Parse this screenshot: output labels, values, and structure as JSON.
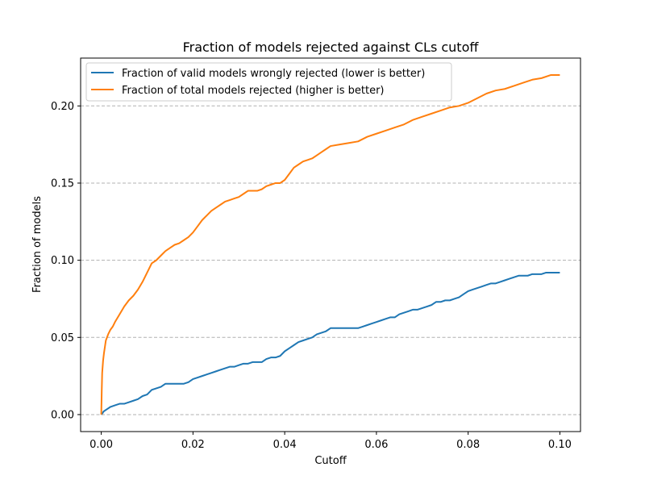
{
  "chart_data": {
    "type": "line",
    "title": "Fraction of models rejected against CLs cutoff",
    "xlabel": "Cutoff",
    "ylabel": "Fraction of models",
    "xlim": [
      -0.0045,
      0.1045
    ],
    "ylim": [
      -0.011,
      0.231
    ],
    "xticks": [
      0.0,
      0.02,
      0.04,
      0.06,
      0.08,
      0.1
    ],
    "xtick_labels": [
      "0.00",
      "0.02",
      "0.04",
      "0.06",
      "0.08",
      "0.10"
    ],
    "yticks": [
      0.0,
      0.05,
      0.1,
      0.15,
      0.2
    ],
    "ytick_labels": [
      "0.00",
      "0.05",
      "0.10",
      "0.15",
      "0.20"
    ],
    "grid": "horizontal dashed",
    "legend_position": "top-left",
    "series": [
      {
        "name": "Fraction of valid models wrongly rejected (lower is better)",
        "color": "#1f77b4",
        "x": [
          0.0,
          0.0003,
          0.0005,
          0.001,
          0.0015,
          0.002,
          0.003,
          0.004,
          0.005,
          0.006,
          0.007,
          0.008,
          0.009,
          0.01,
          0.011,
          0.012,
          0.013,
          0.014,
          0.016,
          0.018,
          0.019,
          0.02,
          0.021,
          0.022,
          0.023,
          0.024,
          0.025,
          0.026,
          0.027,
          0.028,
          0.029,
          0.03,
          0.031,
          0.032,
          0.033,
          0.034,
          0.035,
          0.036,
          0.037,
          0.038,
          0.039,
          0.04,
          0.041,
          0.042,
          0.043,
          0.044,
          0.045,
          0.046,
          0.047,
          0.048,
          0.049,
          0.05,
          0.052,
          0.054,
          0.056,
          0.057,
          0.058,
          0.059,
          0.06,
          0.061,
          0.062,
          0.063,
          0.064,
          0.065,
          0.066,
          0.067,
          0.068,
          0.069,
          0.07,
          0.071,
          0.072,
          0.073,
          0.074,
          0.075,
          0.076,
          0.077,
          0.078,
          0.079,
          0.08,
          0.081,
          0.082,
          0.083,
          0.084,
          0.085,
          0.086,
          0.087,
          0.088,
          0.089,
          0.09,
          0.091,
          0.092,
          0.093,
          0.094,
          0.095,
          0.096,
          0.097,
          0.098,
          0.099,
          0.1
        ],
        "y": [
          0.0,
          0.001,
          0.002,
          0.003,
          0.004,
          0.005,
          0.006,
          0.007,
          0.007,
          0.008,
          0.009,
          0.01,
          0.012,
          0.013,
          0.016,
          0.017,
          0.018,
          0.02,
          0.02,
          0.02,
          0.021,
          0.023,
          0.024,
          0.025,
          0.026,
          0.027,
          0.028,
          0.029,
          0.03,
          0.031,
          0.031,
          0.032,
          0.033,
          0.033,
          0.034,
          0.034,
          0.034,
          0.036,
          0.037,
          0.037,
          0.038,
          0.041,
          0.043,
          0.045,
          0.047,
          0.048,
          0.049,
          0.05,
          0.052,
          0.053,
          0.054,
          0.056,
          0.056,
          0.056,
          0.056,
          0.057,
          0.058,
          0.059,
          0.06,
          0.061,
          0.062,
          0.063,
          0.063,
          0.065,
          0.066,
          0.067,
          0.068,
          0.068,
          0.069,
          0.07,
          0.071,
          0.073,
          0.073,
          0.074,
          0.074,
          0.075,
          0.076,
          0.078,
          0.08,
          0.081,
          0.082,
          0.083,
          0.084,
          0.085,
          0.085,
          0.086,
          0.087,
          0.088,
          0.089,
          0.09,
          0.09,
          0.09,
          0.091,
          0.091,
          0.091,
          0.092,
          0.092,
          0.092,
          0.092
        ]
      },
      {
        "name": "Fraction of total models rejected (higher is better)",
        "color": "#ff7f0e",
        "x": [
          0.0,
          0.0001,
          0.0002,
          0.0004,
          0.0006,
          0.0008,
          0.001,
          0.0015,
          0.002,
          0.0025,
          0.003,
          0.004,
          0.005,
          0.006,
          0.007,
          0.008,
          0.009,
          0.01,
          0.011,
          0.012,
          0.013,
          0.014,
          0.015,
          0.016,
          0.017,
          0.018,
          0.019,
          0.02,
          0.021,
          0.022,
          0.023,
          0.024,
          0.025,
          0.026,
          0.027,
          0.028,
          0.029,
          0.03,
          0.031,
          0.032,
          0.033,
          0.034,
          0.035,
          0.036,
          0.037,
          0.038,
          0.039,
          0.04,
          0.041,
          0.042,
          0.043,
          0.044,
          0.045,
          0.046,
          0.047,
          0.048,
          0.049,
          0.05,
          0.052,
          0.054,
          0.056,
          0.058,
          0.06,
          0.062,
          0.064,
          0.066,
          0.068,
          0.07,
          0.072,
          0.074,
          0.076,
          0.078,
          0.08,
          0.082,
          0.084,
          0.086,
          0.088,
          0.09,
          0.092,
          0.094,
          0.096,
          0.098,
          0.1
        ],
        "y": [
          0.0,
          0.015,
          0.027,
          0.035,
          0.04,
          0.044,
          0.048,
          0.052,
          0.055,
          0.057,
          0.06,
          0.065,
          0.07,
          0.074,
          0.077,
          0.081,
          0.086,
          0.092,
          0.098,
          0.1,
          0.103,
          0.106,
          0.108,
          0.11,
          0.111,
          0.113,
          0.115,
          0.118,
          0.122,
          0.126,
          0.129,
          0.132,
          0.134,
          0.136,
          0.138,
          0.139,
          0.14,
          0.141,
          0.143,
          0.145,
          0.145,
          0.145,
          0.146,
          0.148,
          0.149,
          0.15,
          0.15,
          0.152,
          0.156,
          0.16,
          0.162,
          0.164,
          0.165,
          0.166,
          0.168,
          0.17,
          0.172,
          0.174,
          0.175,
          0.176,
          0.177,
          0.18,
          0.182,
          0.184,
          0.186,
          0.188,
          0.191,
          0.193,
          0.195,
          0.197,
          0.199,
          0.2,
          0.202,
          0.205,
          0.208,
          0.21,
          0.211,
          0.213,
          0.215,
          0.217,
          0.218,
          0.22,
          0.22
        ]
      }
    ]
  }
}
